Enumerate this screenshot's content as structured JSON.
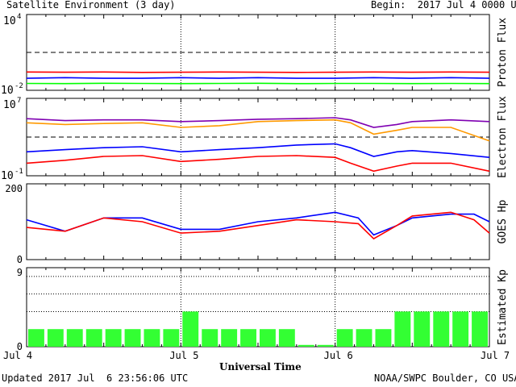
{
  "header": {
    "title": "Satellite Environment (3 day)",
    "begin": "Begin:  2017 Jul 4 0000 UTC"
  },
  "footer": {
    "updated": "Updated 2017 Jul  6 23:56:06 UTC",
    "source": "NOAA/SWPC Boulder, CO USA"
  },
  "x_axis": {
    "label": "Universal Time",
    "ticks": [
      "Jul 4",
      "Jul 5",
      "Jul 6",
      "Jul 7"
    ]
  },
  "colors": {
    "red": "#ff0000",
    "blue": "#0000ff",
    "green": "#00ff00",
    "purple": "#7f00b2",
    "orange": "#ff9900",
    "kp_green": "#33ff33"
  },
  "chart_data": [
    {
      "type": "line",
      "ylabel": "Proton Flux",
      "yscale": "log",
      "ylim": [
        0.01,
        10000
      ],
      "yticks": [
        {
          "base": "10",
          "exp": "4"
        },
        {
          "base": "10",
          "exp": "-2"
        }
      ],
      "threshold": 10,
      "x": [
        0,
        0.25,
        0.5,
        0.75,
        1,
        1.25,
        1.5,
        1.75,
        2,
        2.25,
        2.5,
        2.75,
        3
      ],
      "series": [
        {
          "color": "red",
          "values": [
            0.28,
            0.27,
            0.28,
            0.26,
            0.27,
            0.28,
            0.27,
            0.26,
            0.27,
            0.28,
            0.27,
            0.28,
            0.27
          ]
        },
        {
          "color": "blue",
          "values": [
            0.09,
            0.1,
            0.09,
            0.09,
            0.1,
            0.09,
            0.1,
            0.09,
            0.09,
            0.1,
            0.09,
            0.1,
            0.09
          ]
        },
        {
          "color": "green",
          "values": [
            0.035,
            0.034,
            0.036,
            0.035,
            0.034,
            0.035,
            0.036,
            0.034,
            0.035,
            0.035,
            0.034,
            0.035,
            0.034
          ]
        }
      ]
    },
    {
      "type": "line",
      "ylabel": "Electron Flux",
      "yscale": "log",
      "ylim": [
        0.1,
        10000000
      ],
      "yticks": [
        {
          "base": "10",
          "exp": "7"
        },
        {
          "base": "10",
          "exp": "-1"
        }
      ],
      "threshold": 1000,
      "x": [
        0,
        0.25,
        0.5,
        0.75,
        1,
        1.25,
        1.5,
        1.75,
        2,
        2.1,
        2.25,
        2.4,
        2.5,
        2.75,
        3
      ],
      "series": [
        {
          "color": "purple",
          "values": [
            80000,
            50000,
            60000,
            60000,
            40000,
            50000,
            70000,
            80000,
            100000,
            60000,
            10000,
            20000,
            40000,
            60000,
            40000
          ]
        },
        {
          "color": "orange",
          "values": [
            30000,
            20000,
            25000,
            30000,
            10000,
            15000,
            40000,
            50000,
            60000,
            30000,
            2000,
            5000,
            10000,
            10000,
            400
          ]
        },
        {
          "color": "blue",
          "values": [
            30,
            50,
            80,
            100,
            30,
            50,
            80,
            150,
            200,
            80,
            10,
            30,
            40,
            20,
            8
          ]
        },
        {
          "color": "red",
          "values": [
            2,
            4,
            10,
            12,
            3,
            5,
            10,
            12,
            8,
            2,
            0.3,
            1,
            2,
            2,
            0.3
          ]
        }
      ]
    },
    {
      "type": "line",
      "ylabel": "GOES Hp",
      "yscale": "linear",
      "ylim": [
        0,
        200
      ],
      "yticks": [
        "200",
        "0"
      ],
      "x": [
        0,
        0.25,
        0.5,
        0.75,
        1,
        1.25,
        1.5,
        1.75,
        2,
        2.15,
        2.25,
        2.4,
        2.5,
        2.75,
        2.9,
        3
      ],
      "series": [
        {
          "color": "blue",
          "values": [
            105,
            75,
            110,
            110,
            80,
            80,
            100,
            110,
            125,
            110,
            65,
            90,
            110,
            120,
            120,
            100
          ]
        },
        {
          "color": "red",
          "values": [
            85,
            75,
            110,
            100,
            70,
            75,
            90,
            105,
            100,
            95,
            55,
            90,
            115,
            125,
            105,
            70
          ]
        }
      ]
    },
    {
      "type": "bar",
      "ylabel": "Estimated Kp",
      "ylim": [
        0,
        9
      ],
      "yticks": [
        "9",
        "0"
      ],
      "gridlines": [
        4,
        6,
        8
      ],
      "values": [
        2,
        2,
        2,
        2,
        2,
        2,
        2,
        2,
        4,
        2,
        2,
        2,
        2,
        2,
        0.2,
        0.2,
        2,
        2,
        2,
        4,
        4,
        4,
        4,
        4
      ]
    }
  ]
}
